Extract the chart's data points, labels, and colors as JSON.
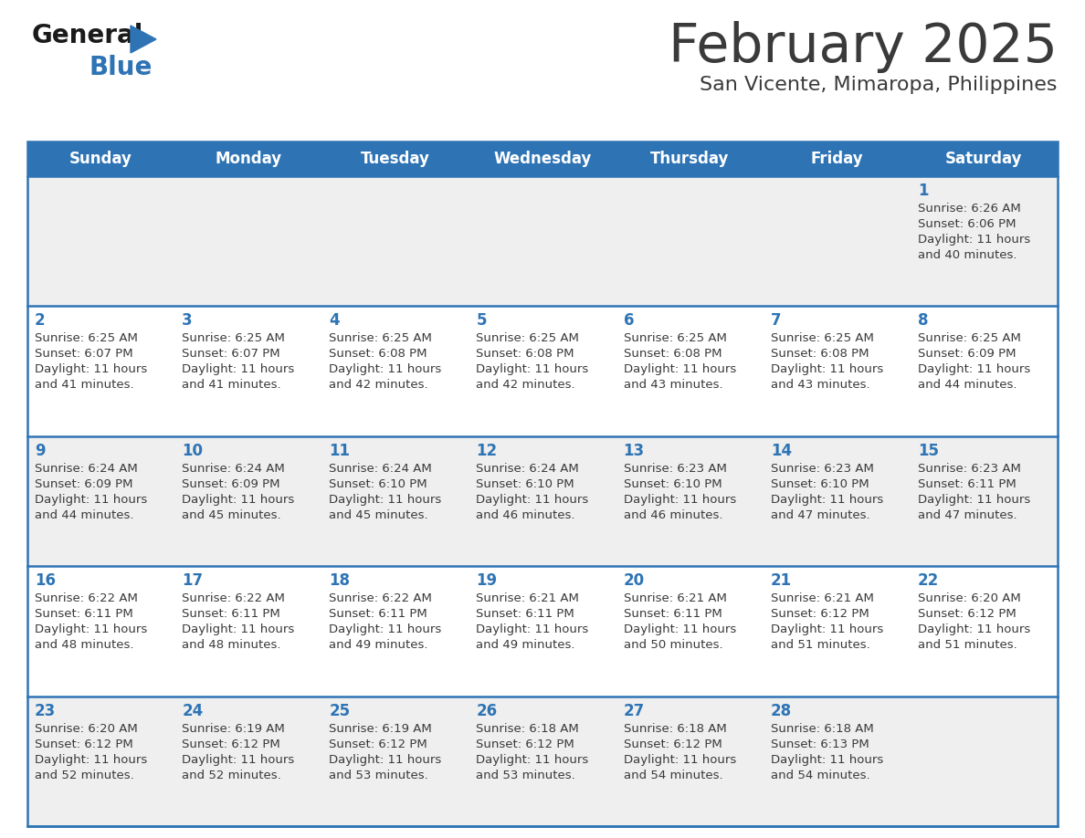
{
  "title": "February 2025",
  "subtitle": "San Vicente, Mimaropa, Philippines",
  "days_of_week": [
    "Sunday",
    "Monday",
    "Tuesday",
    "Wednesday",
    "Thursday",
    "Friday",
    "Saturday"
  ],
  "header_bg": "#2E74B5",
  "header_text": "#FFFFFF",
  "row_bg_odd": "#EFEFEF",
  "row_bg_even": "#FFFFFF",
  "cell_border_color": "#2E74B5",
  "day_number_color": "#2E74B5",
  "info_text_color": "#3a3a3a",
  "title_color": "#3a3a3a",
  "subtitle_color": "#3a3a3a",
  "logo_general_color": "#1a1a1a",
  "logo_blue_color": "#2E74B5",
  "weeks": [
    [
      {
        "day": null,
        "sunrise": null,
        "sunset": null,
        "daylight_hours": null,
        "daylight_minutes": null
      },
      {
        "day": null,
        "sunrise": null,
        "sunset": null,
        "daylight_hours": null,
        "daylight_minutes": null
      },
      {
        "day": null,
        "sunrise": null,
        "sunset": null,
        "daylight_hours": null,
        "daylight_minutes": null
      },
      {
        "day": null,
        "sunrise": null,
        "sunset": null,
        "daylight_hours": null,
        "daylight_minutes": null
      },
      {
        "day": null,
        "sunrise": null,
        "sunset": null,
        "daylight_hours": null,
        "daylight_minutes": null
      },
      {
        "day": null,
        "sunrise": null,
        "sunset": null,
        "daylight_hours": null,
        "daylight_minutes": null
      },
      {
        "day": 1,
        "sunrise": "6:26 AM",
        "sunset": "6:06 PM",
        "daylight_hours": 11,
        "daylight_minutes": 40
      }
    ],
    [
      {
        "day": 2,
        "sunrise": "6:25 AM",
        "sunset": "6:07 PM",
        "daylight_hours": 11,
        "daylight_minutes": 41
      },
      {
        "day": 3,
        "sunrise": "6:25 AM",
        "sunset": "6:07 PM",
        "daylight_hours": 11,
        "daylight_minutes": 41
      },
      {
        "day": 4,
        "sunrise": "6:25 AM",
        "sunset": "6:08 PM",
        "daylight_hours": 11,
        "daylight_minutes": 42
      },
      {
        "day": 5,
        "sunrise": "6:25 AM",
        "sunset": "6:08 PM",
        "daylight_hours": 11,
        "daylight_minutes": 42
      },
      {
        "day": 6,
        "sunrise": "6:25 AM",
        "sunset": "6:08 PM",
        "daylight_hours": 11,
        "daylight_minutes": 43
      },
      {
        "day": 7,
        "sunrise": "6:25 AM",
        "sunset": "6:08 PM",
        "daylight_hours": 11,
        "daylight_minutes": 43
      },
      {
        "day": 8,
        "sunrise": "6:25 AM",
        "sunset": "6:09 PM",
        "daylight_hours": 11,
        "daylight_minutes": 44
      }
    ],
    [
      {
        "day": 9,
        "sunrise": "6:24 AM",
        "sunset": "6:09 PM",
        "daylight_hours": 11,
        "daylight_minutes": 44
      },
      {
        "day": 10,
        "sunrise": "6:24 AM",
        "sunset": "6:09 PM",
        "daylight_hours": 11,
        "daylight_minutes": 45
      },
      {
        "day": 11,
        "sunrise": "6:24 AM",
        "sunset": "6:10 PM",
        "daylight_hours": 11,
        "daylight_minutes": 45
      },
      {
        "day": 12,
        "sunrise": "6:24 AM",
        "sunset": "6:10 PM",
        "daylight_hours": 11,
        "daylight_minutes": 46
      },
      {
        "day": 13,
        "sunrise": "6:23 AM",
        "sunset": "6:10 PM",
        "daylight_hours": 11,
        "daylight_minutes": 46
      },
      {
        "day": 14,
        "sunrise": "6:23 AM",
        "sunset": "6:10 PM",
        "daylight_hours": 11,
        "daylight_minutes": 47
      },
      {
        "day": 15,
        "sunrise": "6:23 AM",
        "sunset": "6:11 PM",
        "daylight_hours": 11,
        "daylight_minutes": 47
      }
    ],
    [
      {
        "day": 16,
        "sunrise": "6:22 AM",
        "sunset": "6:11 PM",
        "daylight_hours": 11,
        "daylight_minutes": 48
      },
      {
        "day": 17,
        "sunrise": "6:22 AM",
        "sunset": "6:11 PM",
        "daylight_hours": 11,
        "daylight_minutes": 48
      },
      {
        "day": 18,
        "sunrise": "6:22 AM",
        "sunset": "6:11 PM",
        "daylight_hours": 11,
        "daylight_minutes": 49
      },
      {
        "day": 19,
        "sunrise": "6:21 AM",
        "sunset": "6:11 PM",
        "daylight_hours": 11,
        "daylight_minutes": 49
      },
      {
        "day": 20,
        "sunrise": "6:21 AM",
        "sunset": "6:11 PM",
        "daylight_hours": 11,
        "daylight_minutes": 50
      },
      {
        "day": 21,
        "sunrise": "6:21 AM",
        "sunset": "6:12 PM",
        "daylight_hours": 11,
        "daylight_minutes": 51
      },
      {
        "day": 22,
        "sunrise": "6:20 AM",
        "sunset": "6:12 PM",
        "daylight_hours": 11,
        "daylight_minutes": 51
      }
    ],
    [
      {
        "day": 23,
        "sunrise": "6:20 AM",
        "sunset": "6:12 PM",
        "daylight_hours": 11,
        "daylight_minutes": 52
      },
      {
        "day": 24,
        "sunrise": "6:19 AM",
        "sunset": "6:12 PM",
        "daylight_hours": 11,
        "daylight_minutes": 52
      },
      {
        "day": 25,
        "sunrise": "6:19 AM",
        "sunset": "6:12 PM",
        "daylight_hours": 11,
        "daylight_minutes": 53
      },
      {
        "day": 26,
        "sunrise": "6:18 AM",
        "sunset": "6:12 PM",
        "daylight_hours": 11,
        "daylight_minutes": 53
      },
      {
        "day": 27,
        "sunrise": "6:18 AM",
        "sunset": "6:12 PM",
        "daylight_hours": 11,
        "daylight_minutes": 54
      },
      {
        "day": 28,
        "sunrise": "6:18 AM",
        "sunset": "6:13 PM",
        "daylight_hours": 11,
        "daylight_minutes": 54
      },
      {
        "day": null,
        "sunrise": null,
        "sunset": null,
        "daylight_hours": null,
        "daylight_minutes": null
      }
    ]
  ]
}
